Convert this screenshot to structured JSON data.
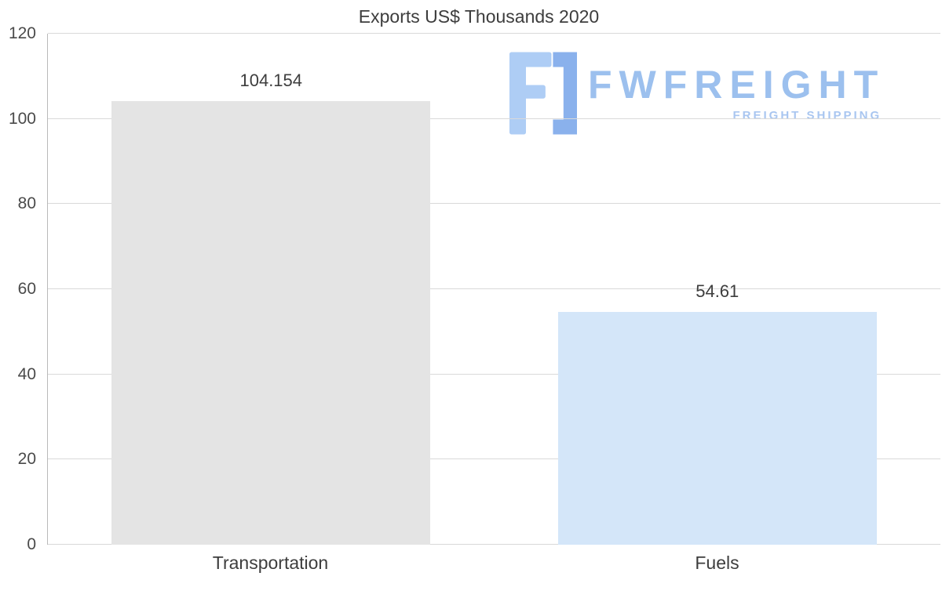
{
  "chart_data": {
    "type": "bar",
    "title": "Exports US$ Thousands 2020",
    "categories": [
      "Transportation",
      "Fuels"
    ],
    "values": [
      104.154,
      54.61
    ],
    "value_labels": [
      "104.154",
      "54.61"
    ],
    "bar_colors": [
      "#e4e4e4",
      "#d4e6f9"
    ],
    "xlabel": "",
    "ylabel": "",
    "ylim": [
      0,
      120
    ],
    "yticks": [
      0,
      20,
      40,
      60,
      80,
      100,
      120
    ],
    "grid": "horizontal",
    "legend": "none"
  },
  "watermark": {
    "brand": "FWFREIGHT",
    "tagline": "FREIGHT SHIPPING",
    "brand_color": "#9cc0ee",
    "icon_light": "#aecdf5",
    "icon_dark": "#8ab1ec"
  },
  "colors": {
    "title_text": "#3d3d3d",
    "tick_text": "#4a4a4a",
    "gridline": "#d9d9d9",
    "axis_line": "#b9b9b9",
    "background": "#ffffff"
  }
}
